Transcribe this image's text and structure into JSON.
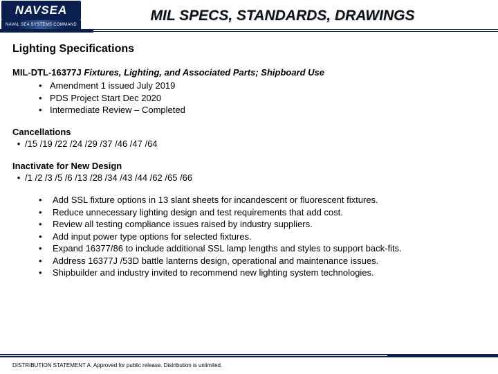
{
  "logo": {
    "top": "NAVSEA",
    "bottom": "NAVAL SEA SYSTEMS COMMAND"
  },
  "title": "MIL SPECS, STANDARDS, DRAWINGS",
  "section_title": "Lighting Specifications",
  "spec": {
    "id": "MIL-DTL-16377J",
    "title": "Fixtures, Lighting, and Associated Parts; Shipboard Use",
    "items": [
      "Amendment 1 issued July 2019",
      "PDS Project Start Dec 2020",
      "Intermediate Review – Completed"
    ]
  },
  "cancellations": {
    "head": "Cancellations",
    "values": "/15  /19  /22  /24  /29  /37  /46  /47  /64"
  },
  "inactivate": {
    "head": "Inactivate for New Design",
    "values": "/1  /2  /3  /5  /6  /13  /28  /34  /43  /44  /62  /65  /66"
  },
  "actions": [
    "Add SSL fixture options in 13 slant sheets for incandescent or fluorescent fixtures.",
    "Reduce unnecessary lighting design and test requirements that add cost.",
    "Review all testing compliance issues raised by industry suppliers.",
    "Add input power type options for selected fixtures.",
    "Expand 16377/86 to include additional SSL lamp lengths and styles to support back-fits.",
    "Address 16377J /53D battle lanterns design, operational and maintenance issues.",
    "Shipbuilder and industry invited to recommend new lighting system technologies."
  ],
  "distribution": "DISTRIBUTION STATEMENT A. Approved for public release. Distribution is unlimited.",
  "colors": {
    "navy": "#0a1f4d",
    "bg": "#ffffff"
  }
}
